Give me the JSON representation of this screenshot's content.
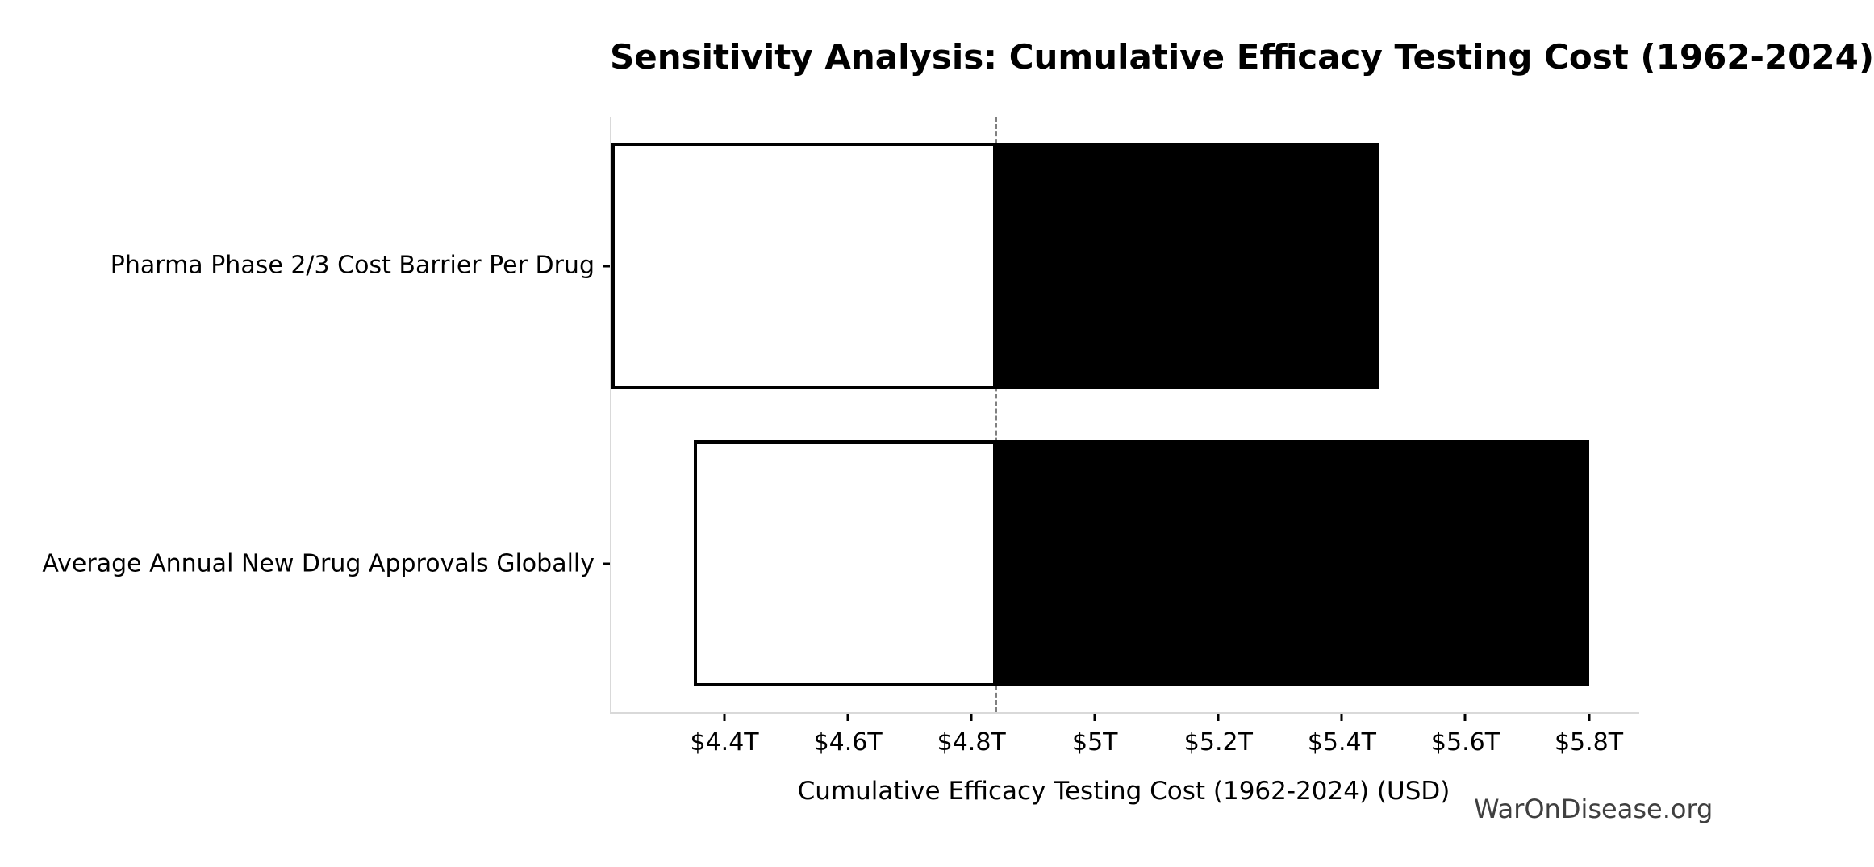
{
  "watermark": "WarOnDisease.org",
  "chart_data": {
    "type": "bar",
    "variant": "tornado-sensitivity",
    "orientation": "horizontal",
    "title": "Sensitivity Analysis: Cumulative Efficacy Testing Cost (1962-2024)",
    "xlabel": "Cumulative Efficacy Testing Cost (1962-2024) (USD)",
    "units": "trillions USD",
    "categories": [
      "Pharma Phase 2/3 Cost Barrier Per Drug",
      "Average Annual New Drug Approvals Globally"
    ],
    "baseline": 4.84,
    "rows": [
      {
        "label": "Pharma Phase 2/3 Cost Barrier Per Drug",
        "low": 4.21,
        "high": 5.46
      },
      {
        "label": "Average Annual New Drug Approvals Globally",
        "low": 4.35,
        "high": 5.8
      }
    ],
    "xlim": [
      4.217,
      5.879
    ],
    "xticks": [
      {
        "value": 4.4,
        "label": "$4.4T"
      },
      {
        "value": 4.6,
        "label": "$4.6T"
      },
      {
        "value": 4.8,
        "label": "$4.8T"
      },
      {
        "value": 5.0,
        "label": "$5T"
      },
      {
        "value": 5.2,
        "label": "$5.2T"
      },
      {
        "value": 5.4,
        "label": "$5.4T"
      },
      {
        "value": 5.6,
        "label": "$5.6T"
      },
      {
        "value": 5.8,
        "label": "$5.8T"
      }
    ],
    "grid": false,
    "legend": false,
    "colors": {
      "low_fill": "#ffffff",
      "high_fill": "#000000",
      "bar_edge": "#000000",
      "baseline_line": "#808080",
      "spine": "#d9d9d9",
      "tick": "#000000",
      "text": "#000000",
      "watermark": "#3f3f3f"
    }
  }
}
